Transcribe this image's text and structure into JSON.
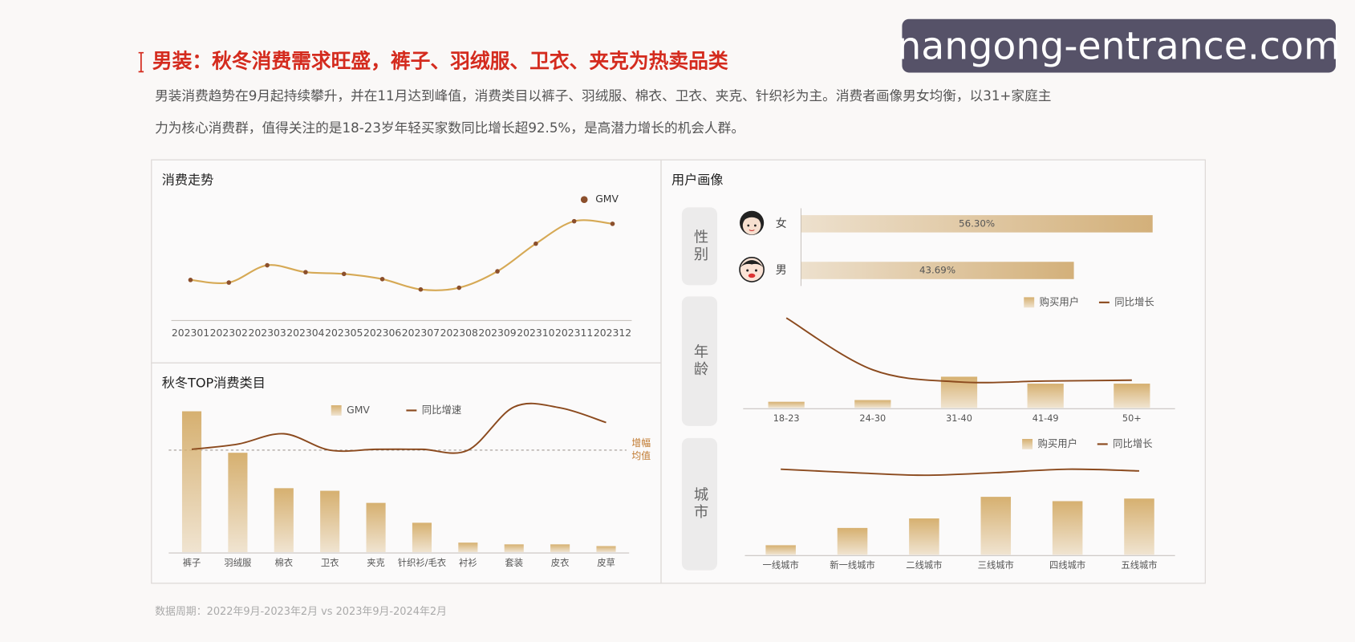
{
  "title": "男装：秋冬消费需求旺盛，裤子、羽绒服、卫衣、夹克为热卖品类",
  "description": [
    "男装消费趋势在9月起持续攀升，并在11月达到峰值，消费类目以裤子、羽绒服、棉衣、卫衣、夹克、针织衫为主。消费者画像男女均衡，以31+家庭主",
    "力为核心消费群，值得关注的是18-23岁年轻买家数同比增长超92.5%，是高潜力增长的机会人群。"
  ],
  "watermark": "nangong-entrance.com",
  "section_title": "用户画像",
  "footnote": "数据周期：2022年9月-2023年2月 vs 2023年9月-2024年2月",
  "chart_data": [
    {
      "type": "line",
      "title": "消费走势",
      "categories": [
        "202301",
        "202302",
        "202303",
        "202304",
        "202305",
        "202306",
        "202307",
        "202308",
        "202309",
        "202310",
        "202311",
        "202312"
      ],
      "series": [
        {
          "name": "GMV",
          "color": "#d6a955",
          "marker_color": "#8b4f2c",
          "values": [
            46,
            43,
            63,
            55,
            53,
            47,
            35,
            37,
            56,
            88,
            114,
            111
          ]
        }
      ],
      "ylim": [
        0,
        120
      ]
    },
    {
      "type": "bar",
      "title": "秋冬TOP消费类目",
      "categories": [
        "裤子",
        "羽绒服",
        "棉衣",
        "卫衣",
        "夹克",
        "针织衫/毛衣",
        "衬衫",
        "套装",
        "皮衣",
        "皮草"
      ],
      "series": [
        {
          "name": "GMV",
          "color": "#d6b070",
          "values": [
            163,
            115,
            74,
            71,
            57,
            34,
            11,
            9,
            9,
            7
          ]
        },
        {
          "name": "同比增速",
          "color": "#8b4a1e",
          "type": "line",
          "values": [
            119,
            125,
            137,
            118,
            119,
            119,
            118,
            168,
            167,
            150
          ]
        }
      ],
      "reference_line": {
        "value": 118,
        "label": [
          "增幅",
          "均值"
        ]
      },
      "ylim": [
        0,
        180
      ]
    },
    {
      "type": "hbar",
      "group_label": "性别",
      "categories": [
        "女",
        "男"
      ],
      "values": [
        56.3,
        43.69
      ],
      "value_labels": [
        "56.30%",
        "43.69%"
      ],
      "color": "#d3b07a",
      "xlim": [
        0,
        100
      ]
    },
    {
      "type": "bar",
      "group_label": "年龄",
      "categories": [
        "18-23",
        "24-30",
        "31-40",
        "41-49",
        "50+"
      ],
      "series": [
        {
          "name": "购买用户",
          "color": "#d6b070",
          "values": [
            7,
            9,
            36,
            28,
            28
          ]
        },
        {
          "name": "同比增长",
          "color": "#8b4a1e",
          "type": "line",
          "values": [
            104,
            44,
            30,
            31,
            32
          ]
        }
      ],
      "ylim": [
        0,
        110
      ]
    },
    {
      "type": "bar",
      "group_label": "城市",
      "categories": [
        "一线城市",
        "新一线城市",
        "二线城市",
        "三线城市",
        "四线城市",
        "五线城市"
      ],
      "series": [
        {
          "name": "购买用户",
          "color": "#d6b070",
          "values": [
            11,
            31,
            42,
            67,
            62,
            65
          ]
        },
        {
          "name": "同比增长",
          "color": "#8b4a1e",
          "type": "line",
          "values": [
            99,
            95,
            92,
            95,
            99,
            97
          ]
        }
      ],
      "ylim": [
        0,
        110
      ]
    }
  ]
}
